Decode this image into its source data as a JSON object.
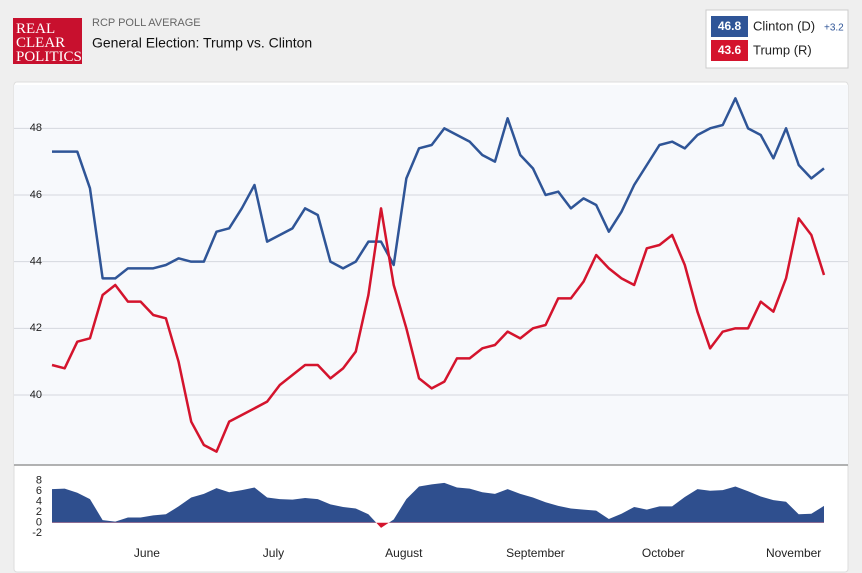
{
  "header": {
    "logo": [
      "REAL",
      "CLEAR",
      "POLITICS"
    ],
    "source": "RCP POLL AVERAGE",
    "title": "General Election: Trump vs. Clinton"
  },
  "legend": {
    "spread": "+3.2",
    "entries": [
      {
        "value": 46.8,
        "name": "Clinton (D)",
        "color": "#2f5597"
      },
      {
        "value": 43.6,
        "name": "Trump (R)",
        "color": "#d4142d"
      }
    ]
  },
  "chart_data": [
    {
      "type": "line",
      "xlim": [
        0,
        61
      ],
      "ylim": [
        37.9,
        49.3
      ],
      "yticks": [
        40,
        42,
        44,
        46,
        48
      ],
      "grid": true,
      "series": [
        {
          "name": "Clinton (D)",
          "color": "#2f5597",
          "values": [
            47.3,
            47.3,
            47.3,
            46.2,
            43.5,
            43.5,
            43.8,
            43.8,
            43.8,
            43.9,
            44.1,
            44.0,
            44.0,
            44.9,
            45.0,
            45.6,
            46.3,
            44.6,
            44.8,
            45.0,
            45.6,
            45.4,
            44.0,
            43.8,
            44.0,
            44.6,
            44.6,
            43.9,
            46.5,
            47.4,
            47.5,
            48.0,
            47.8,
            47.6,
            47.2,
            47.0,
            48.3,
            47.2,
            46.8,
            46.0,
            46.1,
            45.6,
            45.9,
            45.7,
            44.9,
            45.5,
            46.3,
            46.9,
            47.5,
            47.6,
            47.4,
            47.8,
            48.0,
            48.1,
            48.9,
            48.0,
            47.8,
            47.1,
            48.0,
            46.9,
            46.5,
            46.8
          ]
        },
        {
          "name": "Trump (R)",
          "color": "#d4142d",
          "values": [
            40.9,
            40.8,
            41.6,
            41.7,
            43.0,
            43.3,
            42.8,
            42.8,
            42.4,
            42.3,
            41.0,
            39.2,
            38.5,
            38.3,
            39.2,
            39.4,
            39.6,
            39.8,
            40.3,
            40.6,
            40.9,
            40.9,
            40.5,
            40.8,
            41.3,
            43.0,
            45.6,
            43.3,
            42.0,
            40.5,
            40.2,
            40.4,
            41.1,
            41.1,
            41.4,
            41.5,
            41.9,
            41.7,
            42.0,
            42.1,
            42.9,
            42.9,
            43.4,
            44.2,
            43.8,
            43.5,
            43.3,
            44.4,
            44.5,
            44.8,
            43.9,
            42.5,
            41.4,
            41.9,
            42.0,
            42.0,
            42.8,
            42.5,
            43.5,
            45.3,
            44.8,
            43.6
          ]
        }
      ]
    },
    {
      "type": "area",
      "xlim": [
        0,
        61
      ],
      "ylim": [
        -3.3,
        11
      ],
      "yticks": [
        8,
        6,
        4,
        2,
        0,
        -2
      ],
      "color": "#2f4f8e",
      "negative_color": "#d4142d",
      "values": [
        6.4,
        6.5,
        5.7,
        4.5,
        0.5,
        0.2,
        1.0,
        1.0,
        1.4,
        1.6,
        3.1,
        4.8,
        5.5,
        6.6,
        5.8,
        6.2,
        6.7,
        4.8,
        4.5,
        4.4,
        4.7,
        4.5,
        3.5,
        3.0,
        2.7,
        1.6,
        -1.0,
        0.6,
        4.5,
        6.9,
        7.3,
        7.6,
        6.7,
        6.5,
        5.8,
        5.5,
        6.4,
        5.5,
        4.8,
        3.9,
        3.2,
        2.7,
        2.5,
        2.3,
        0.7,
        1.7,
        3.0,
        2.5,
        3.1,
        3.1,
        4.9,
        6.4,
        6.1,
        6.2,
        6.9,
        6.0,
        5.0,
        4.3,
        4.0,
        1.6,
        1.7,
        3.2
      ],
      "xticks": [
        {
          "value": 7.5,
          "label": "June"
        },
        {
          "value": 17.5,
          "label": "July"
        },
        {
          "value": 27.8,
          "label": "August"
        },
        {
          "value": 38.2,
          "label": "September"
        },
        {
          "value": 48.3,
          "label": "October"
        },
        {
          "value": 58.6,
          "label": "November"
        }
      ]
    }
  ]
}
